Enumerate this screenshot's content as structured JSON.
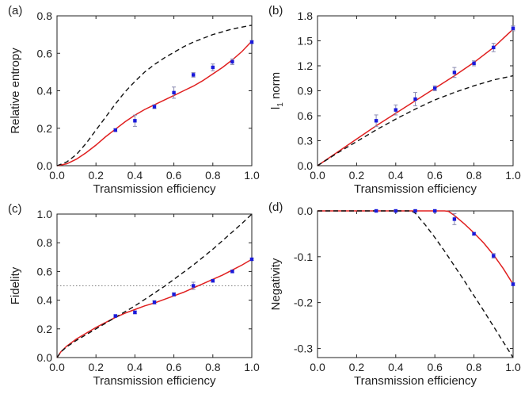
{
  "chart_data": [
    {
      "type": "line",
      "panel_label": "(a)",
      "xlabel": "Transmission efficiency",
      "ylabel": "Relative entropy",
      "xlim": [
        0,
        1.0
      ],
      "ylim": [
        0,
        0.8
      ],
      "xticks": [
        0.0,
        0.2,
        0.4,
        0.6,
        0.8,
        1.0
      ],
      "yticks": [
        0.0,
        0.2,
        0.4,
        0.6,
        0.8
      ],
      "series": [
        {
          "kind": "line",
          "style": "solid",
          "color": "#e02020",
          "x": [
            0,
            0.05,
            0.1,
            0.15,
            0.2,
            0.25,
            0.3,
            0.35,
            0.4,
            0.45,
            0.5,
            0.55,
            0.6,
            0.65,
            0.7,
            0.75,
            0.8,
            0.85,
            0.9,
            0.95,
            1.0
          ],
          "y": [
            0,
            0.01,
            0.035,
            0.07,
            0.11,
            0.155,
            0.195,
            0.235,
            0.27,
            0.3,
            0.325,
            0.35,
            0.375,
            0.4,
            0.425,
            0.455,
            0.49,
            0.525,
            0.565,
            0.61,
            0.665
          ]
        },
        {
          "kind": "line",
          "style": "dashed",
          "color": "#111111",
          "x": [
            0,
            0.05,
            0.1,
            0.15,
            0.2,
            0.25,
            0.3,
            0.35,
            0.4,
            0.45,
            0.5,
            0.55,
            0.6,
            0.65,
            0.7,
            0.75,
            0.8,
            0.85,
            0.9,
            0.95,
            1.0
          ],
          "y": [
            0,
            0.02,
            0.06,
            0.12,
            0.19,
            0.26,
            0.33,
            0.395,
            0.45,
            0.5,
            0.54,
            0.575,
            0.605,
            0.635,
            0.66,
            0.68,
            0.7,
            0.715,
            0.73,
            0.74,
            0.75
          ]
        },
        {
          "kind": "points",
          "color": "#1a1adb",
          "x": [
            0.3,
            0.4,
            0.5,
            0.6,
            0.7,
            0.8,
            0.9,
            1.0
          ],
          "y": [
            0.19,
            0.24,
            0.315,
            0.39,
            0.485,
            0.525,
            0.555,
            0.66
          ],
          "err": [
            0.008,
            0.03,
            0.01,
            0.03,
            0.012,
            0.018,
            0.015,
            0.008
          ]
        }
      ]
    },
    {
      "type": "line",
      "panel_label": "(b)",
      "xlabel": "Transmission efficiency",
      "ylabel": "l",
      "ylabel_subscript": "1",
      "ylabel_suffix": " norm",
      "xlim": [
        0,
        1.0
      ],
      "ylim": [
        0,
        1.8
      ],
      "xticks": [
        0.0,
        0.2,
        0.4,
        0.6,
        0.8,
        1.0
      ],
      "yticks": [
        0.0,
        0.3,
        0.6,
        0.9,
        1.2,
        1.5,
        1.8
      ],
      "series": [
        {
          "kind": "line",
          "style": "solid",
          "color": "#e02020",
          "x": [
            0,
            0.1,
            0.2,
            0.3,
            0.4,
            0.5,
            0.6,
            0.7,
            0.8,
            0.9,
            1.0
          ],
          "y": [
            0,
            0.16,
            0.32,
            0.48,
            0.63,
            0.78,
            0.93,
            1.08,
            1.24,
            1.42,
            1.64
          ]
        },
        {
          "kind": "line",
          "style": "dashed",
          "color": "#111111",
          "x": [
            0,
            0.1,
            0.2,
            0.3,
            0.4,
            0.5,
            0.6,
            0.7,
            0.8,
            0.9,
            1.0
          ],
          "y": [
            0,
            0.15,
            0.29,
            0.43,
            0.56,
            0.68,
            0.79,
            0.88,
            0.96,
            1.03,
            1.08
          ]
        },
        {
          "kind": "points",
          "color": "#1a1adb",
          "x": [
            0.3,
            0.4,
            0.5,
            0.6,
            0.7,
            0.8,
            0.9,
            1.0
          ],
          "y": [
            0.54,
            0.67,
            0.8,
            0.93,
            1.12,
            1.23,
            1.42,
            1.65
          ],
          "err": [
            0.07,
            0.06,
            0.08,
            0.03,
            0.06,
            0.03,
            0.05,
            0.03
          ]
        }
      ]
    },
    {
      "type": "line",
      "panel_label": "(c)",
      "xlabel": "Transmission efficiency",
      "ylabel": "Fidelity",
      "xlim": [
        0,
        1.0
      ],
      "ylim": [
        0,
        1.0
      ],
      "xticks": [
        0.0,
        0.2,
        0.4,
        0.6,
        0.8,
        1.0
      ],
      "yticks": [
        0.0,
        0.2,
        0.4,
        0.6,
        0.8,
        1.0
      ],
      "reference_line_y": 0.5,
      "series": [
        {
          "kind": "line",
          "style": "solid",
          "color": "#e02020",
          "x": [
            0,
            0.02,
            0.05,
            0.1,
            0.15,
            0.2,
            0.25,
            0.3,
            0.35,
            0.4,
            0.45,
            0.5,
            0.55,
            0.6,
            0.65,
            0.7,
            0.75,
            0.8,
            0.85,
            0.9,
            0.95,
            1.0
          ],
          "y": [
            0,
            0.04,
            0.08,
            0.13,
            0.17,
            0.21,
            0.245,
            0.28,
            0.31,
            0.335,
            0.36,
            0.38,
            0.405,
            0.43,
            0.455,
            0.485,
            0.515,
            0.545,
            0.575,
            0.61,
            0.645,
            0.685
          ]
        },
        {
          "kind": "line",
          "style": "dashed",
          "color": "#111111",
          "x": [
            0,
            0.02,
            0.05,
            0.1,
            0.15,
            0.2,
            0.25,
            0.3,
            0.35,
            0.4,
            0.45,
            0.5,
            0.55,
            0.6,
            0.65,
            0.7,
            0.75,
            0.8,
            0.85,
            0.9,
            0.95,
            1.0
          ],
          "y": [
            0,
            0.04,
            0.075,
            0.12,
            0.16,
            0.2,
            0.24,
            0.28,
            0.32,
            0.36,
            0.405,
            0.45,
            0.495,
            0.545,
            0.595,
            0.645,
            0.7,
            0.755,
            0.815,
            0.875,
            0.935,
            1.0
          ]
        },
        {
          "kind": "points",
          "color": "#1a1adb",
          "x": [
            0.3,
            0.4,
            0.5,
            0.6,
            0.7,
            0.8,
            0.9,
            1.0
          ],
          "y": [
            0.29,
            0.315,
            0.385,
            0.44,
            0.5,
            0.535,
            0.6,
            0.685
          ],
          "err": [
            0.008,
            0.01,
            0.012,
            0.012,
            0.025,
            0.01,
            0.008,
            0.008
          ]
        }
      ]
    },
    {
      "type": "line",
      "panel_label": "(d)",
      "xlabel": "Transmission efficiency",
      "ylabel": "Negativity",
      "xlim": [
        0,
        1.0
      ],
      "ylim": [
        -0.32,
        0
      ],
      "xticks": [
        0.0,
        0.2,
        0.4,
        0.6,
        0.8,
        1.0
      ],
      "yticks": [
        0.0,
        -0.1,
        -0.2,
        -0.3
      ],
      "series": [
        {
          "kind": "line",
          "style": "solid",
          "color": "#e02020",
          "x": [
            0,
            0.3,
            0.5,
            0.6,
            0.65,
            0.67,
            0.7,
            0.75,
            0.8,
            0.85,
            0.9,
            0.95,
            1.0
          ],
          "y": [
            0,
            0,
            0,
            0,
            0,
            -0.001,
            -0.01,
            -0.028,
            -0.048,
            -0.07,
            -0.096,
            -0.126,
            -0.16
          ]
        },
        {
          "kind": "line",
          "style": "dashed",
          "color": "#111111",
          "x": [
            0,
            0.3,
            0.48,
            0.5,
            0.55,
            0.6,
            0.65,
            0.7,
            0.75,
            0.8,
            0.85,
            0.9,
            0.95,
            1.0
          ],
          "y": [
            0,
            0,
            0,
            -0.005,
            -0.03,
            -0.058,
            -0.088,
            -0.12,
            -0.152,
            -0.185,
            -0.218,
            -0.252,
            -0.286,
            -0.32
          ]
        },
        {
          "kind": "points",
          "color": "#1a1adb",
          "x": [
            0.3,
            0.4,
            0.5,
            0.6,
            0.7,
            0.8,
            0.9,
            1.0
          ],
          "y": [
            0,
            0,
            0,
            0,
            -0.018,
            -0.05,
            -0.098,
            -0.16
          ],
          "err": [
            0.002,
            0.002,
            0.002,
            0.002,
            0.012,
            0.003,
            0.005,
            0.003
          ]
        }
      ]
    }
  ]
}
